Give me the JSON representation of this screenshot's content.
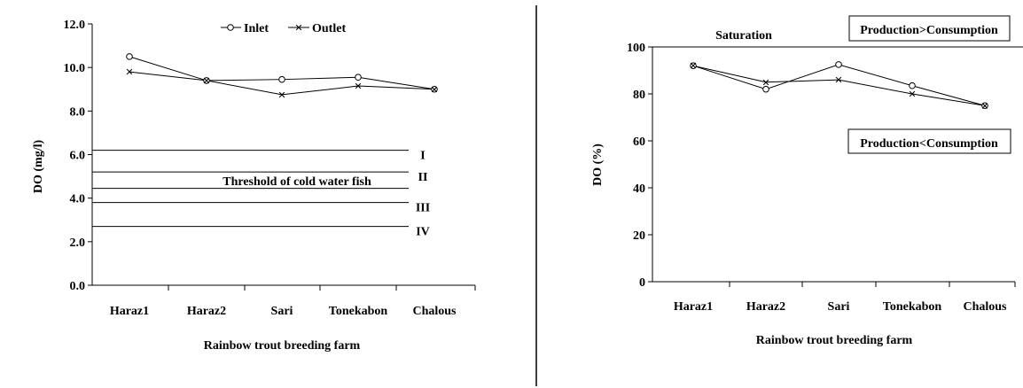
{
  "chart_data": [
    {
      "type": "line",
      "categories": [
        "Haraz1",
        "Haraz2",
        "Sari",
        "Tonekabon",
        "Chalous"
      ],
      "series": [
        {
          "name": "Inlet",
          "marker": "circle",
          "values": [
            10.5,
            9.4,
            9.45,
            9.55,
            9.0
          ]
        },
        {
          "name": "Outlet",
          "marker": "star",
          "values": [
            9.8,
            9.4,
            8.75,
            9.15,
            9.0
          ]
        }
      ],
      "xlabel": "Rainbow trout breeding farm",
      "ylabel": "DO (mg/l)",
      "ylim": [
        0,
        12
      ],
      "yticks": [
        "0.0",
        "2.0",
        "4.0",
        "6.0",
        "8.0",
        "10.0",
        "12.0"
      ],
      "legend_position": "top",
      "thresholds": [
        {
          "label": "I",
          "value": 6.2
        },
        {
          "label": "II",
          "value": 5.2
        },
        {
          "label": "",
          "value": 4.45
        },
        {
          "label": "III",
          "value": 3.8
        },
        {
          "label": "IV",
          "value": 2.7
        }
      ],
      "annotation": "Threshold of cold water fish"
    },
    {
      "type": "line",
      "categories": [
        "Haraz1",
        "Haraz2",
        "Sari",
        "Tonekabon",
        "Chalous"
      ],
      "series": [
        {
          "name": "Inlet",
          "marker": "circle",
          "values": [
            92,
            82,
            92.5,
            83.5,
            75
          ]
        },
        {
          "name": "Outlet",
          "marker": "star",
          "values": [
            92,
            85,
            86,
            80,
            75
          ]
        }
      ],
      "xlabel": "Rainbow trout breeding farm",
      "ylabel": "DO (%)",
      "ylim": [
        0,
        100
      ],
      "yticks": [
        "0",
        "20",
        "40",
        "60",
        "80",
        "100"
      ],
      "reference_line": {
        "label": "Saturation",
        "value": 100
      },
      "annotations": [
        "Production>Consumption",
        "Production<Consumption"
      ]
    }
  ]
}
